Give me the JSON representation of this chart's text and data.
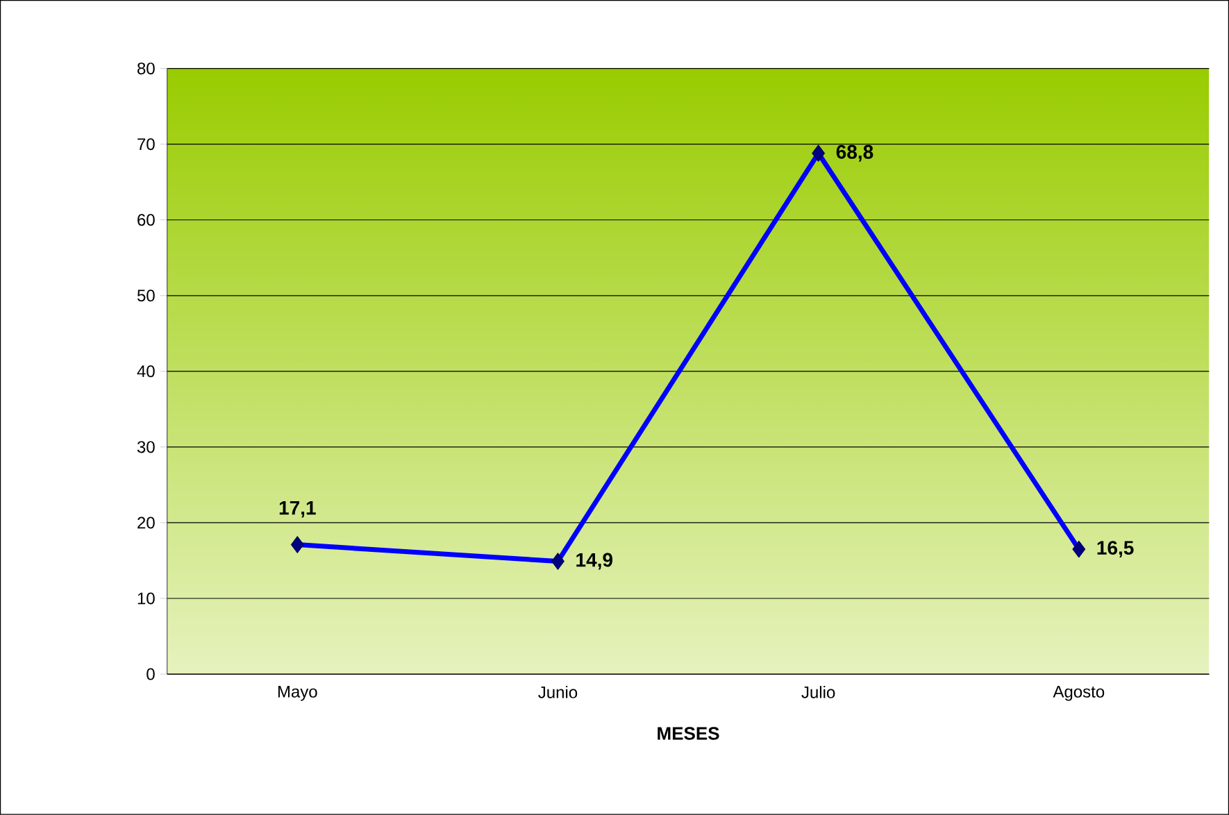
{
  "chart_data": {
    "type": "line",
    "xlabel": "MESES",
    "categories": [
      "Mayo",
      "Junio",
      "Julio",
      "Agosto"
    ],
    "series": [
      {
        "color": "#0000ff",
        "values": [
          17.1,
          14.9,
          68.8,
          16.5
        ],
        "value_labels": [
          "17,1",
          "14,9",
          "68,8",
          "16,5"
        ]
      }
    ],
    "ylim": [
      0,
      80
    ],
    "yticks": [
      0,
      10,
      20,
      30,
      40,
      50,
      60,
      70,
      80
    ],
    "grid": "y",
    "marker": "diamond",
    "line_style": "solid"
  }
}
